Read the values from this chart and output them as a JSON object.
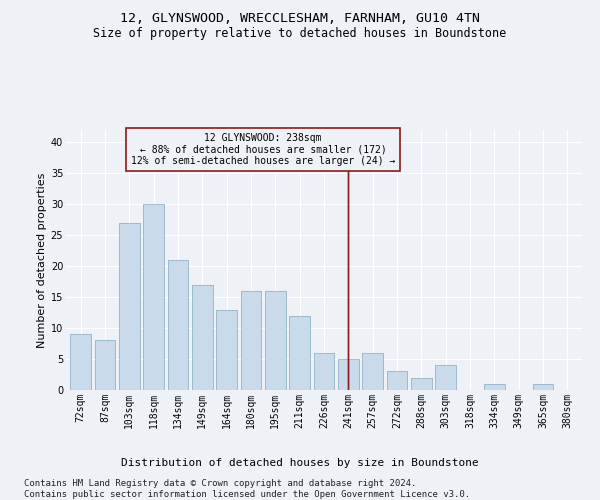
{
  "title1": "12, GLYNSWOOD, WRECCLESHAM, FARNHAM, GU10 4TN",
  "title2": "Size of property relative to detached houses in Boundstone",
  "xlabel": "Distribution of detached houses by size in Boundstone",
  "ylabel": "Number of detached properties",
  "categories": [
    "72sqm",
    "87sqm",
    "103sqm",
    "118sqm",
    "134sqm",
    "149sqm",
    "164sqm",
    "180sqm",
    "195sqm",
    "211sqm",
    "226sqm",
    "241sqm",
    "257sqm",
    "272sqm",
    "288sqm",
    "303sqm",
    "318sqm",
    "334sqm",
    "349sqm",
    "365sqm",
    "380sqm"
  ],
  "values": [
    9,
    8,
    27,
    30,
    21,
    17,
    13,
    16,
    16,
    12,
    6,
    5,
    6,
    3,
    2,
    4,
    0,
    1,
    0,
    1,
    0
  ],
  "bar_color": "#c9daea",
  "bar_edgecolor": "#9ab8cc",
  "vline_x_index": 11,
  "vline_color": "#8b1a1a",
  "annotation_text": "12 GLYNSWOOD: 238sqm\n← 88% of detached houses are smaller (172)\n12% of semi-detached houses are larger (24) →",
  "annotation_box_color": "#8b1a1a",
  "ylim": [
    0,
    42
  ],
  "yticks": [
    0,
    5,
    10,
    15,
    20,
    25,
    30,
    35,
    40
  ],
  "footer1": "Contains HM Land Registry data © Crown copyright and database right 2024.",
  "footer2": "Contains public sector information licensed under the Open Government Licence v3.0.",
  "background_color": "#eef2f7",
  "grid_color": "#ffffff",
  "title1_fontsize": 9.5,
  "title2_fontsize": 8.5,
  "tick_fontsize": 7,
  "ylabel_fontsize": 8,
  "xlabel_fontsize": 8,
  "annotation_fontsize": 7,
  "footer_fontsize": 6.5
}
